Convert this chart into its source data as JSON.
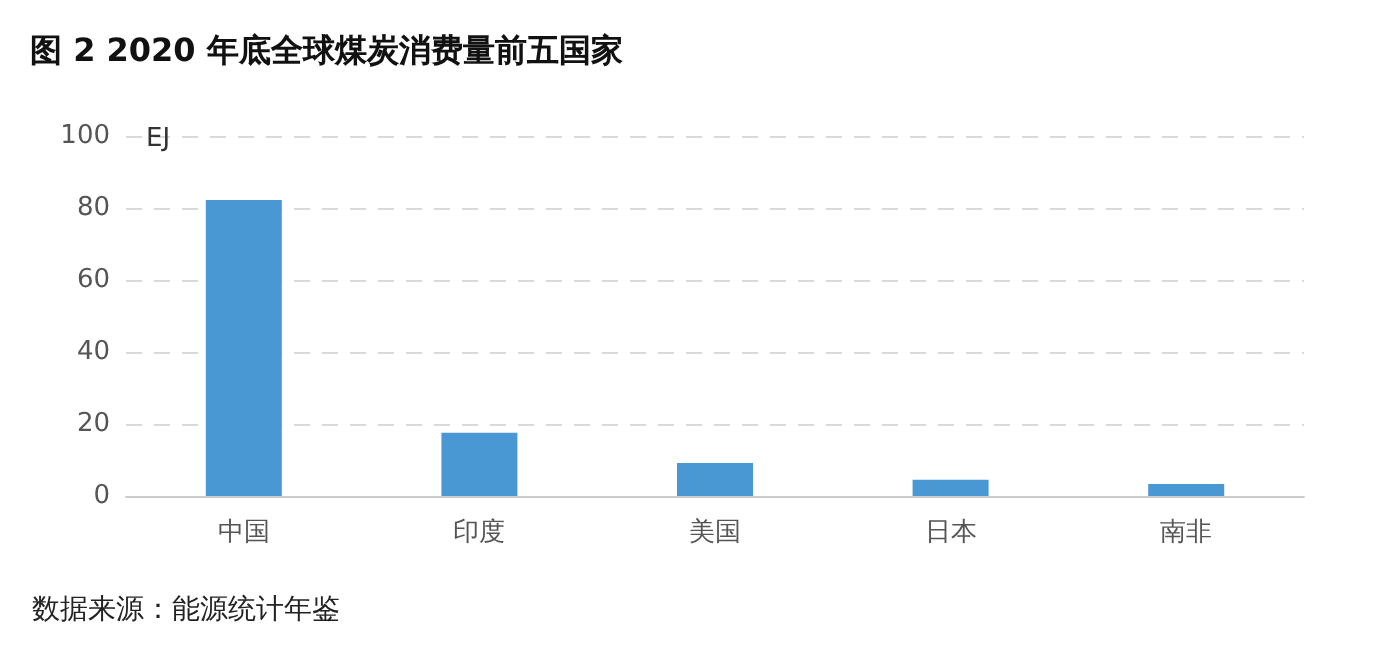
{
  "chart_data": {
    "type": "bar",
    "title": "图 2 2020 年底全球煤炭消费量前五国家",
    "ylabel": "EJ",
    "categories": [
      "中国",
      "印度",
      "美国",
      "日本",
      "南非"
    ],
    "values": [
      82.2,
      17.6,
      9.2,
      4.5,
      3.3
    ],
    "color": "#4a98d3",
    "ylim": [
      0,
      100
    ],
    "yticks": [
      0,
      20,
      40,
      60,
      80,
      100
    ],
    "grid": "y",
    "annotations": [
      "数据来源：能源统计年鉴"
    ]
  }
}
